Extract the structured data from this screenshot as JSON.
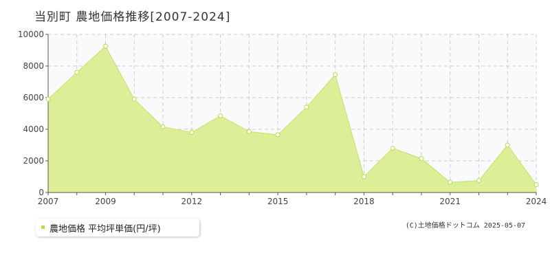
{
  "title": "当別町 農地価格推移[2007-2024]",
  "legend": {
    "label": "農地価格 平均坪単価(円/坪)"
  },
  "copyright": "(C)土地価格ドットコム 2025-05-07",
  "colors": {
    "fill": "#dcee96",
    "line": "#c4e26a",
    "marker": "#b7dd42",
    "grid": "#cccccc",
    "plot_bg": "#faf9fb"
  },
  "chart_data": {
    "type": "area",
    "x": [
      2007,
      2008,
      2009,
      2010,
      2011,
      2012,
      2013,
      2014,
      2015,
      2016,
      2017,
      2018,
      2019,
      2020,
      2021,
      2022,
      2023,
      2024
    ],
    "series": [
      {
        "name": "農地価格 平均坪単価(円/坪)",
        "values": [
          5900,
          7600,
          9250,
          5900,
          4150,
          3800,
          4850,
          3850,
          3650,
          5400,
          7450,
          1000,
          2800,
          2150,
          650,
          750,
          3000,
          500
        ]
      }
    ],
    "xticks": [
      2007,
      2009,
      2012,
      2015,
      2018,
      2021,
      2024
    ],
    "yticks": [
      0,
      2000,
      4000,
      6000,
      8000,
      10000
    ],
    "xlim": [
      2007,
      2024
    ],
    "ylim": [
      0,
      10000
    ],
    "grid": true
  }
}
